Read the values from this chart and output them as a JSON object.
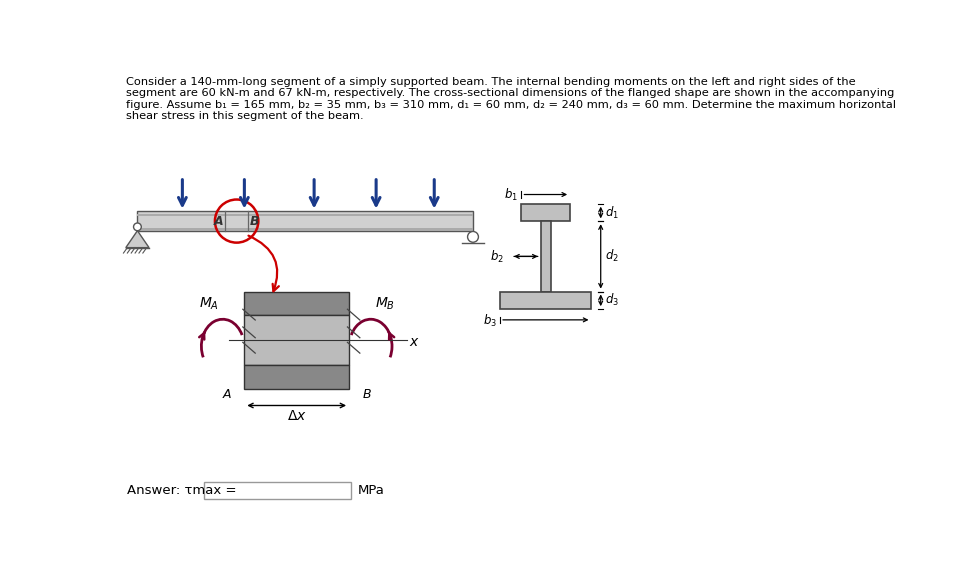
{
  "bg_color": "#ffffff",
  "text_color": "#000000",
  "beam_fill": "#c8c8c8",
  "beam_edge": "#555555",
  "dark_seg": "#888888",
  "light_seg": "#bbbbbb",
  "cs_fill": "#c0c0c0",
  "cs_edge": "#444444",
  "arrow_blue": "#1a3a8a",
  "arrow_red": "#cc0000",
  "moment_color": "#7a0030",
  "answer_label": "Answer: τmax =",
  "answer_unit": "MPa",
  "line1": "Consider a 140-mm-long segment of a simply supported beam. The internal bending moments on the left and right sides of the",
  "line2": "segment are 60 kN-m and 67 kN-m, respectively. The cross-sectional dimensions of the flanged shape are shown in the accompanying",
  "line3": "figure. Assume b₁ = 165 mm, b₂ = 35 mm, b₃ = 310 mm, d₁ = 60 mm, d₂ = 240 mm, d₃ = 60 mm. Determine the maximum horizontal",
  "line4": "shear stress in this segment of the beam."
}
